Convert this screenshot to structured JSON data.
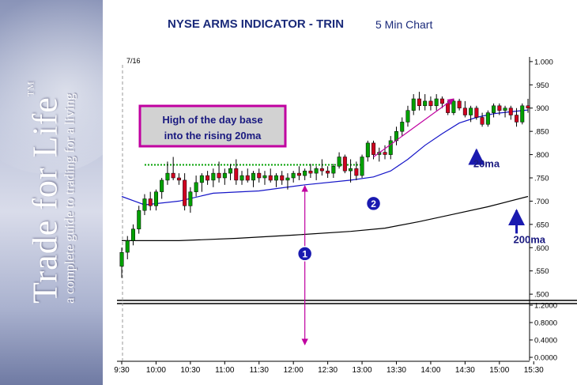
{
  "sidebar": {
    "brand_title": "Trade for Life",
    "brand_tm": "TM",
    "brand_tagline": "a complete guide to trading for a living"
  },
  "header": {
    "title": "NYSE ARMS INDICATOR - TRIN",
    "subtitle": "5 Min Chart"
  },
  "chart_data": {
    "type": "candlestick",
    "date_label": "7/16",
    "x_ticks": [
      "9:30",
      "10:00",
      "10:30",
      "11:00",
      "11:30",
      "12:00",
      "12:30",
      "13:00",
      "13:30",
      "14:00",
      "14:30",
      "15:00",
      "15:30"
    ],
    "y_ticks": [
      ".500",
      ".550",
      ".600",
      ".650",
      ".700",
      ".750",
      ".800",
      ".850",
      ".900",
      ".950",
      "1.000"
    ],
    "ylim": [
      0.49,
      1.01
    ],
    "volume_ticks": [
      "0.0000",
      "0.4000",
      "0.8000",
      "1.2000"
    ],
    "colors": {
      "up": "#00a000",
      "down": "#d00020",
      "ma20": "#1515c8",
      "ma200": "#000000",
      "annot": "#c000a0",
      "marker": "#1a1ab0",
      "dotted": "#00a000"
    },
    "candles": [
      {
        "o": 0.56,
        "h": 0.6,
        "l": 0.535,
        "c": 0.59
      },
      {
        "o": 0.59,
        "h": 0.625,
        "l": 0.575,
        "c": 0.615
      },
      {
        "o": 0.615,
        "h": 0.65,
        "l": 0.605,
        "c": 0.64
      },
      {
        "o": 0.64,
        "h": 0.69,
        "l": 0.63,
        "c": 0.68
      },
      {
        "o": 0.68,
        "h": 0.715,
        "l": 0.67,
        "c": 0.705
      },
      {
        "o": 0.705,
        "h": 0.72,
        "l": 0.68,
        "c": 0.69
      },
      {
        "o": 0.69,
        "h": 0.725,
        "l": 0.68,
        "c": 0.72
      },
      {
        "o": 0.72,
        "h": 0.75,
        "l": 0.705,
        "c": 0.745
      },
      {
        "o": 0.745,
        "h": 0.785,
        "l": 0.735,
        "c": 0.76
      },
      {
        "o": 0.76,
        "h": 0.795,
        "l": 0.745,
        "c": 0.75
      },
      {
        "o": 0.75,
        "h": 0.76,
        "l": 0.735,
        "c": 0.745
      },
      {
        "o": 0.745,
        "h": 0.76,
        "l": 0.68,
        "c": 0.69
      },
      {
        "o": 0.69,
        "h": 0.73,
        "l": 0.675,
        "c": 0.72
      },
      {
        "o": 0.72,
        "h": 0.755,
        "l": 0.71,
        "c": 0.74
      },
      {
        "o": 0.74,
        "h": 0.76,
        "l": 0.72,
        "c": 0.755
      },
      {
        "o": 0.755,
        "h": 0.765,
        "l": 0.735,
        "c": 0.745
      },
      {
        "o": 0.745,
        "h": 0.77,
        "l": 0.73,
        "c": 0.76
      },
      {
        "o": 0.76,
        "h": 0.785,
        "l": 0.74,
        "c": 0.75
      },
      {
        "o": 0.75,
        "h": 0.77,
        "l": 0.735,
        "c": 0.76
      },
      {
        "o": 0.76,
        "h": 0.78,
        "l": 0.745,
        "c": 0.77
      },
      {
        "o": 0.77,
        "h": 0.79,
        "l": 0.735,
        "c": 0.745
      },
      {
        "o": 0.745,
        "h": 0.765,
        "l": 0.735,
        "c": 0.755
      },
      {
        "o": 0.755,
        "h": 0.77,
        "l": 0.74,
        "c": 0.745
      },
      {
        "o": 0.745,
        "h": 0.765,
        "l": 0.73,
        "c": 0.76
      },
      {
        "o": 0.76,
        "h": 0.77,
        "l": 0.74,
        "c": 0.75
      },
      {
        "o": 0.75,
        "h": 0.765,
        "l": 0.735,
        "c": 0.755
      },
      {
        "o": 0.755,
        "h": 0.77,
        "l": 0.74,
        "c": 0.745
      },
      {
        "o": 0.745,
        "h": 0.76,
        "l": 0.73,
        "c": 0.755
      },
      {
        "o": 0.755,
        "h": 0.765,
        "l": 0.735,
        "c": 0.745
      },
      {
        "o": 0.745,
        "h": 0.76,
        "l": 0.725,
        "c": 0.75
      },
      {
        "o": 0.75,
        "h": 0.765,
        "l": 0.74,
        "c": 0.76
      },
      {
        "o": 0.76,
        "h": 0.775,
        "l": 0.745,
        "c": 0.755
      },
      {
        "o": 0.755,
        "h": 0.77,
        "l": 0.745,
        "c": 0.765
      },
      {
        "o": 0.765,
        "h": 0.78,
        "l": 0.75,
        "c": 0.76
      },
      {
        "o": 0.76,
        "h": 0.775,
        "l": 0.745,
        "c": 0.77
      },
      {
        "o": 0.77,
        "h": 0.79,
        "l": 0.755,
        "c": 0.765
      },
      {
        "o": 0.765,
        "h": 0.775,
        "l": 0.75,
        "c": 0.76
      },
      {
        "o": 0.76,
        "h": 0.78,
        "l": 0.75,
        "c": 0.775
      },
      {
        "o": 0.775,
        "h": 0.805,
        "l": 0.77,
        "c": 0.795
      },
      {
        "o": 0.795,
        "h": 0.8,
        "l": 0.76,
        "c": 0.765
      },
      {
        "o": 0.765,
        "h": 0.79,
        "l": 0.74,
        "c": 0.77
      },
      {
        "o": 0.77,
        "h": 0.785,
        "l": 0.745,
        "c": 0.755
      },
      {
        "o": 0.755,
        "h": 0.8,
        "l": 0.75,
        "c": 0.795
      },
      {
        "o": 0.795,
        "h": 0.83,
        "l": 0.785,
        "c": 0.825
      },
      {
        "o": 0.825,
        "h": 0.83,
        "l": 0.79,
        "c": 0.8
      },
      {
        "o": 0.8,
        "h": 0.815,
        "l": 0.785,
        "c": 0.805
      },
      {
        "o": 0.805,
        "h": 0.82,
        "l": 0.79,
        "c": 0.8
      },
      {
        "o": 0.8,
        "h": 0.84,
        "l": 0.79,
        "c": 0.83
      },
      {
        "o": 0.83,
        "h": 0.86,
        "l": 0.82,
        "c": 0.85
      },
      {
        "o": 0.85,
        "h": 0.88,
        "l": 0.84,
        "c": 0.87
      },
      {
        "o": 0.87,
        "h": 0.905,
        "l": 0.86,
        "c": 0.895
      },
      {
        "o": 0.895,
        "h": 0.93,
        "l": 0.885,
        "c": 0.92
      },
      {
        "o": 0.92,
        "h": 0.935,
        "l": 0.895,
        "c": 0.905
      },
      {
        "o": 0.905,
        "h": 0.93,
        "l": 0.895,
        "c": 0.915
      },
      {
        "o": 0.915,
        "h": 0.925,
        "l": 0.895,
        "c": 0.905
      },
      {
        "o": 0.905,
        "h": 0.93,
        "l": 0.895,
        "c": 0.92
      },
      {
        "o": 0.92,
        "h": 0.925,
        "l": 0.9,
        "c": 0.91
      },
      {
        "o": 0.91,
        "h": 0.915,
        "l": 0.885,
        "c": 0.89
      },
      {
        "o": 0.89,
        "h": 0.92,
        "l": 0.885,
        "c": 0.915
      },
      {
        "o": 0.915,
        "h": 0.92,
        "l": 0.895,
        "c": 0.9
      },
      {
        "o": 0.9,
        "h": 0.915,
        "l": 0.88,
        "c": 0.885
      },
      {
        "o": 0.885,
        "h": 0.905,
        "l": 0.87,
        "c": 0.9
      },
      {
        "o": 0.9,
        "h": 0.905,
        "l": 0.875,
        "c": 0.88
      },
      {
        "o": 0.88,
        "h": 0.89,
        "l": 0.86,
        "c": 0.865
      },
      {
        "o": 0.865,
        "h": 0.895,
        "l": 0.86,
        "c": 0.89
      },
      {
        "o": 0.89,
        "h": 0.91,
        "l": 0.88,
        "c": 0.905
      },
      {
        "o": 0.905,
        "h": 0.91,
        "l": 0.885,
        "c": 0.895
      },
      {
        "o": 0.895,
        "h": 0.905,
        "l": 0.88,
        "c": 0.9
      },
      {
        "o": 0.9,
        "h": 0.905,
        "l": 0.875,
        "c": 0.885
      },
      {
        "o": 0.885,
        "h": 0.9,
        "l": 0.86,
        "c": 0.87
      },
      {
        "o": 0.87,
        "h": 0.91,
        "l": 0.865,
        "c": 0.905
      },
      {
        "o": 0.905,
        "h": 0.92,
        "l": 0.89,
        "c": 0.9
      }
    ],
    "ma20": [
      {
        "i": 0,
        "y": 0.71
      },
      {
        "i": 4,
        "y": 0.692
      },
      {
        "i": 10,
        "y": 0.7
      },
      {
        "i": 16,
        "y": 0.717
      },
      {
        "i": 24,
        "y": 0.722
      },
      {
        "i": 32,
        "y": 0.735
      },
      {
        "i": 40,
        "y": 0.745
      },
      {
        "i": 44,
        "y": 0.752
      },
      {
        "i": 47,
        "y": 0.765
      },
      {
        "i": 50,
        "y": 0.79
      },
      {
        "i": 53,
        "y": 0.82
      },
      {
        "i": 56,
        "y": 0.845
      },
      {
        "i": 59,
        "y": 0.868
      },
      {
        "i": 62,
        "y": 0.88
      },
      {
        "i": 65,
        "y": 0.888
      },
      {
        "i": 68,
        "y": 0.892
      },
      {
        "i": 71,
        "y": 0.896
      }
    ],
    "ma200": [
      {
        "i": 0,
        "y": 0.615
      },
      {
        "i": 10,
        "y": 0.615
      },
      {
        "i": 20,
        "y": 0.62
      },
      {
        "i": 30,
        "y": 0.627
      },
      {
        "i": 40,
        "y": 0.635
      },
      {
        "i": 46,
        "y": 0.642
      },
      {
        "i": 52,
        "y": 0.656
      },
      {
        "i": 58,
        "y": 0.672
      },
      {
        "i": 64,
        "y": 0.688
      },
      {
        "i": 71,
        "y": 0.71
      }
    ],
    "hod_base": {
      "level": 0.778,
      "from": 4,
      "to": 42
    },
    "callout": {
      "line1": "High of the day base",
      "line2": "into the rising 20ma"
    },
    "markers": [
      {
        "label": "1",
        "i": 32,
        "y": 0.587
      },
      {
        "label": "2",
        "i": 44,
        "y": 0.695
      }
    ],
    "arrow_1": {
      "i": 32,
      "y_top": 0.733
    },
    "arrow_rise": {
      "from_i": 44,
      "from_y": 0.795,
      "to_i": 58,
      "to_y": 0.92
    },
    "ma_labels": [
      {
        "text": "20ma",
        "i": 62,
        "y": 0.773,
        "arrow_y": 0.81
      },
      {
        "text": "200ma",
        "i": 69,
        "y": 0.61,
        "arrow_y": 0.68
      }
    ]
  }
}
